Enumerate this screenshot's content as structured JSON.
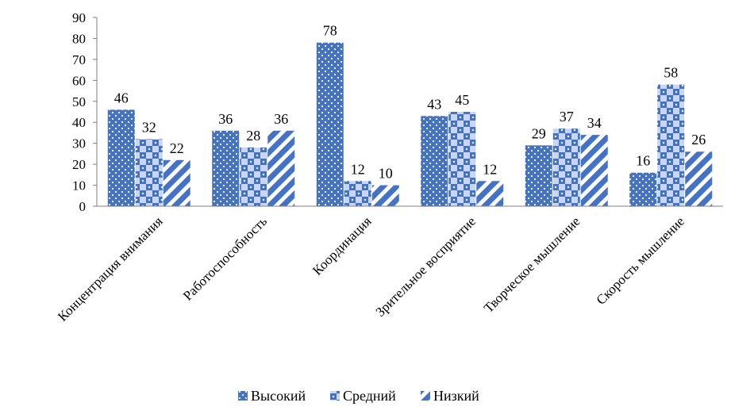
{
  "chart_data": {
    "type": "bar",
    "title": "",
    "xlabel": "",
    "ylabel": "",
    "ylim": [
      0,
      90
    ],
    "yticks": [
      0,
      10,
      20,
      30,
      40,
      50,
      60,
      70,
      80,
      90
    ],
    "grid": false,
    "legend_position": "bottom",
    "categories": [
      "Концентрация внимания",
      "Работоспособность",
      "Координация",
      "Зрительное восприятие",
      "Творческое мышление",
      "Скорость мышление"
    ],
    "series": [
      {
        "name": "Высокий",
        "pattern": "dots",
        "color": "#4472c4",
        "values": [
          46,
          36,
          78,
          43,
          29,
          16
        ]
      },
      {
        "name": "Средний",
        "pattern": "checker",
        "color": "#4472c4",
        "values": [
          32,
          28,
          12,
          45,
          37,
          58
        ]
      },
      {
        "name": "Низкий",
        "pattern": "diagonal",
        "color": "#4472c4",
        "values": [
          22,
          36,
          10,
          12,
          34,
          26
        ]
      }
    ]
  }
}
